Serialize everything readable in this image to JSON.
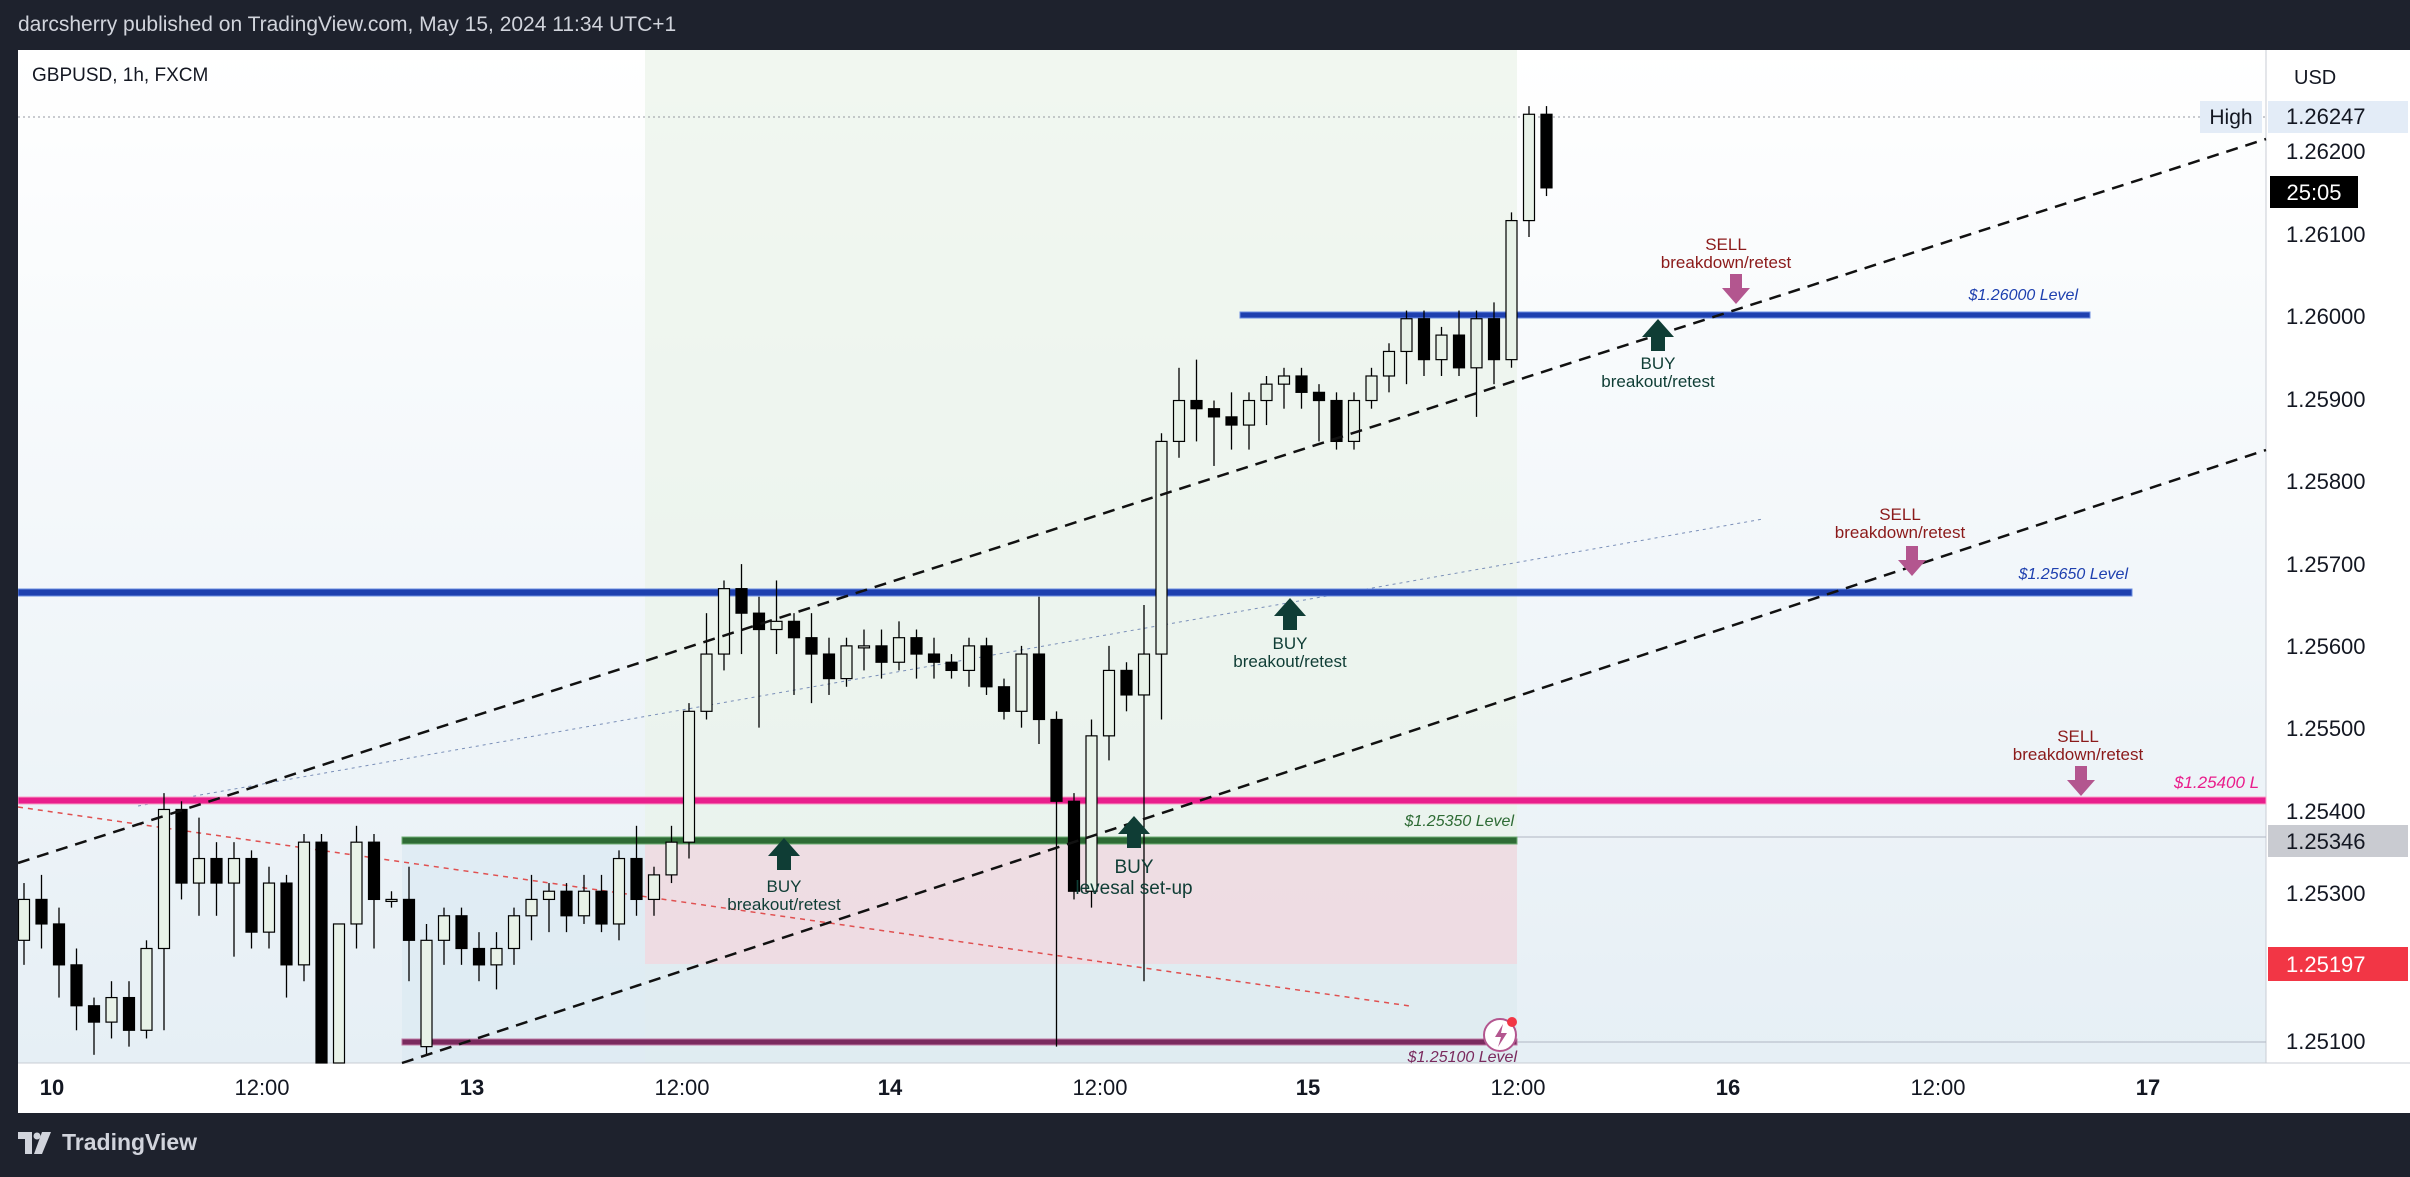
{
  "header": {
    "published": "darcsherry published on TradingView.com, May 15, 2024 11:34 UTC+1"
  },
  "footer": {
    "brand": "TradingView"
  },
  "symbol": {
    "label": "GBPUSD, 1h, FXCM"
  },
  "price_axis": {
    "currency": "USD",
    "high_tag": "High",
    "high_value": "1.26247",
    "countdown": "25:05",
    "tag_gray": "1.25346",
    "tag_red": "1.25197",
    "ticks": [
      "1.26200",
      "1.26100",
      "1.26000",
      "1.25900",
      "1.25800",
      "1.25700",
      "1.25600",
      "1.25500",
      "1.25400",
      "1.25300",
      "1.25100"
    ]
  },
  "time_axis": {
    "labels": [
      "10",
      "12:00",
      "13",
      "12:00",
      "14",
      "12:00",
      "15",
      "12:00",
      "16",
      "12:00",
      "17"
    ]
  },
  "levels": [
    {
      "label": "$1.26000 Level",
      "price": 1.26,
      "color": "#1e40af"
    },
    {
      "label": "$1.25650 Level",
      "price": 1.2565,
      "color": "#1e40af"
    },
    {
      "label": "$1.25400 L",
      "price": 1.254,
      "color": "#e91e8c"
    },
    {
      "label": "$1.25350 Level",
      "price": 1.2535,
      "color": "#2e6b35"
    },
    {
      "label": "$1.25100 Level",
      "price": 1.251,
      "color": "#7a2a5e"
    }
  ],
  "annotations": {
    "sell_top": [
      "SELL",
      "breakdown/retest"
    ],
    "sell_mid": [
      "SELL",
      "breakdown/retest"
    ],
    "sell_low": [
      "SELL",
      "breakdown/retest"
    ],
    "buy_top": [
      "BUY",
      "breakout/retest"
    ],
    "buy_mid": [
      "BUY",
      "breakout/retest"
    ],
    "buy_low": [
      "BUY",
      "breakout/retest"
    ],
    "buy_rev": [
      "BUY",
      "levesal set-up"
    ]
  },
  "colors": {
    "up_candle": "#e8f2e8",
    "down_candle": "#000000",
    "sell_arrow": "#b3568f",
    "buy_arrow": "#0f3d35",
    "sell_text": "#8b1a1a",
    "buy_text": "#0f3d35"
  },
  "chart_data": {
    "type": "candlestick",
    "symbol": "GBPUSD",
    "interval": "1h",
    "ylim": [
      1.2508,
      1.263
    ],
    "candles_ohlc": [
      [
        1.2523,
        1.253,
        1.252,
        1.2528
      ],
      [
        1.2528,
        1.2531,
        1.2522,
        1.2525
      ],
      [
        1.2525,
        1.2527,
        1.2516,
        1.252
      ],
      [
        1.252,
        1.2522,
        1.2512,
        1.2515
      ],
      [
        1.2515,
        1.2516,
        1.2509,
        1.2513
      ],
      [
        1.2513,
        1.2518,
        1.2511,
        1.2516
      ],
      [
        1.2516,
        1.2518,
        1.251,
        1.2512
      ],
      [
        1.2512,
        1.2523,
        1.2511,
        1.2522
      ],
      [
        1.2522,
        1.2541,
        1.2512,
        1.2539
      ],
      [
        1.2539,
        1.254,
        1.2528,
        1.253
      ],
      [
        1.253,
        1.2538,
        1.2526,
        1.2533
      ],
      [
        1.2533,
        1.2535,
        1.2526,
        1.253
      ],
      [
        1.253,
        1.2535,
        1.2521,
        1.2533
      ],
      [
        1.2533,
        1.2534,
        1.2522,
        1.2524
      ],
      [
        1.2524,
        1.2532,
        1.2522,
        1.253
      ],
      [
        1.253,
        1.2531,
        1.2516,
        1.252
      ],
      [
        1.252,
        1.2536,
        1.2518,
        1.2535
      ],
      [
        1.2535,
        1.2536,
        1.2505,
        1.2506
      ],
      [
        1.2506,
        1.252,
        1.2503,
        1.2525
      ],
      [
        1.2525,
        1.2537,
        1.2522,
        1.2535
      ],
      [
        1.2535,
        1.2536,
        1.2522,
        1.2528
      ],
      [
        1.2528,
        1.2529,
        1.2527,
        1.2528
      ],
      [
        1.2528,
        1.2532,
        1.2518,
        1.2523
      ],
      [
        1.251,
        1.2525,
        1.2509,
        1.2523
      ],
      [
        1.2523,
        1.2527,
        1.252,
        1.2526
      ],
      [
        1.2526,
        1.2527,
        1.252,
        1.2522
      ],
      [
        1.2522,
        1.2524,
        1.2518,
        1.252
      ],
      [
        1.252,
        1.2524,
        1.2517,
        1.2522
      ],
      [
        1.2522,
        1.2527,
        1.252,
        1.2526
      ],
      [
        1.2526,
        1.2531,
        1.2523,
        1.2528
      ],
      [
        1.2528,
        1.253,
        1.2524,
        1.2529
      ],
      [
        1.2529,
        1.253,
        1.2524,
        1.2526
      ],
      [
        1.2526,
        1.2531,
        1.2525,
        1.2529
      ],
      [
        1.2529,
        1.2531,
        1.2524,
        1.2525
      ],
      [
        1.2525,
        1.2534,
        1.2523,
        1.2533
      ],
      [
        1.2533,
        1.2537,
        1.2526,
        1.2528
      ],
      [
        1.2528,
        1.2532,
        1.2526,
        1.2531
      ],
      [
        1.2531,
        1.2537,
        1.253,
        1.2535
      ],
      [
        1.2535,
        1.2552,
        1.2533,
        1.2551
      ],
      [
        1.2551,
        1.2563,
        1.255,
        1.2558
      ],
      [
        1.2558,
        1.2567,
        1.2556,
        1.2566
      ],
      [
        1.2566,
        1.2569,
        1.2558,
        1.2563
      ],
      [
        1.2563,
        1.2565,
        1.2549,
        1.2561
      ],
      [
        1.2561,
        1.2567,
        1.2558,
        1.2562
      ],
      [
        1.2562,
        1.2563,
        1.2553,
        1.256
      ],
      [
        1.256,
        1.2563,
        1.2552,
        1.2558
      ],
      [
        1.2558,
        1.256,
        1.2553,
        1.2555
      ],
      [
        1.2555,
        1.256,
        1.2554,
        1.2559
      ],
      [
        1.2559,
        1.2561,
        1.2556,
        1.2559
      ],
      [
        1.2559,
        1.2561,
        1.2555,
        1.2557
      ],
      [
        1.2557,
        1.2562,
        1.2556,
        1.256
      ],
      [
        1.256,
        1.2561,
        1.2555,
        1.2558
      ],
      [
        1.2558,
        1.256,
        1.2555,
        1.2557
      ],
      [
        1.2557,
        1.2558,
        1.2555,
        1.2556
      ],
      [
        1.2556,
        1.256,
        1.2554,
        1.2559
      ],
      [
        1.2559,
        1.256,
        1.2553,
        1.2554
      ],
      [
        1.2554,
        1.2555,
        1.255,
        1.2551
      ],
      [
        1.2551,
        1.2559,
        1.2549,
        1.2558
      ],
      [
        1.2558,
        1.2565,
        1.2547,
        1.255
      ],
      [
        1.255,
        1.2551,
        1.251,
        1.254
      ],
      [
        1.254,
        1.2541,
        1.2528,
        1.2529
      ],
      [
        1.2529,
        1.255,
        1.2527,
        1.2548
      ],
      [
        1.2548,
        1.2559,
        1.2545,
        1.2556
      ],
      [
        1.2556,
        1.2557,
        1.2551,
        1.2553
      ],
      [
        1.2553,
        1.2564,
        1.2518,
        1.2558
      ],
      [
        1.2558,
        1.2585,
        1.255,
        1.2584
      ],
      [
        1.2584,
        1.2593,
        1.2582,
        1.2589
      ],
      [
        1.2589,
        1.2594,
        1.2584,
        1.2588
      ],
      [
        1.2588,
        1.2589,
        1.2581,
        1.2587
      ],
      [
        1.2587,
        1.259,
        1.2583,
        1.2586
      ],
      [
        1.2586,
        1.259,
        1.2583,
        1.2589
      ],
      [
        1.2589,
        1.2592,
        1.2586,
        1.2591
      ],
      [
        1.2591,
        1.2593,
        1.2588,
        1.2592
      ],
      [
        1.2592,
        1.2593,
        1.2588,
        1.259
      ],
      [
        1.259,
        1.2591,
        1.2584,
        1.2589
      ],
      [
        1.2589,
        1.259,
        1.2583,
        1.2584
      ],
      [
        1.2584,
        1.259,
        1.2583,
        1.2589
      ],
      [
        1.2589,
        1.2593,
        1.2588,
        1.2592
      ],
      [
        1.2592,
        1.2596,
        1.259,
        1.2595
      ],
      [
        1.2595,
        1.26,
        1.2591,
        1.2599
      ],
      [
        1.2599,
        1.26,
        1.2592,
        1.2594
      ],
      [
        1.2594,
        1.2598,
        1.2592,
        1.2597
      ],
      [
        1.2597,
        1.26,
        1.2592,
        1.2593
      ],
      [
        1.2593,
        1.26,
        1.2587,
        1.2599
      ],
      [
        1.2599,
        1.2601,
        1.2591,
        1.2594
      ],
      [
        1.2594,
        1.2612,
        1.2593,
        1.2611
      ],
      [
        1.2611,
        1.2625,
        1.2609,
        1.2624
      ],
      [
        1.2624,
        1.2625,
        1.2614,
        1.2615
      ]
    ]
  }
}
